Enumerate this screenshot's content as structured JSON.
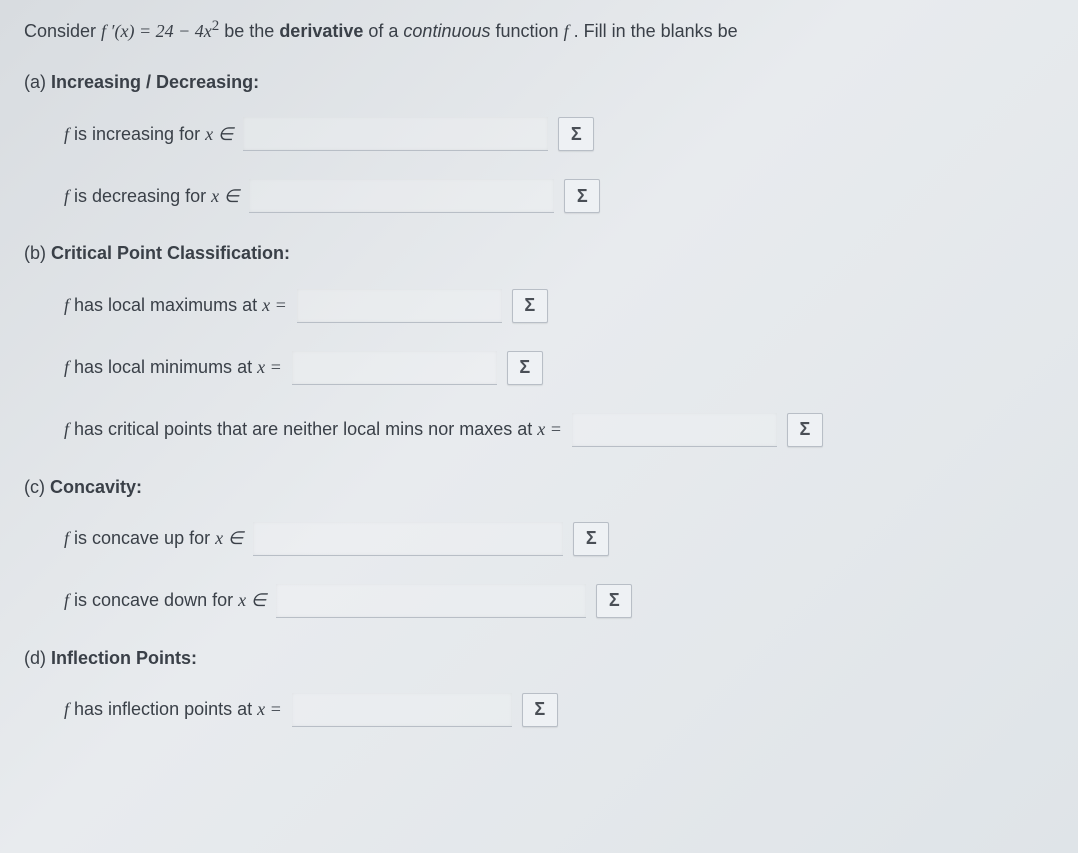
{
  "intro": {
    "prefix": "Consider ",
    "fprime": "f ′(x) = 24 − 4x",
    "exp": "2",
    "mid": " be the ",
    "bold1": "derivative",
    "mid2": " of a ",
    "ital1": "continuous",
    "mid3": " function ",
    "fsym": "f",
    "suffix": ". Fill in the blanks be"
  },
  "sections": {
    "a": {
      "label": "(a) ",
      "title": "Increasing / Decreasing:"
    },
    "b": {
      "label": "(b) ",
      "title": "Critical Point Classification:"
    },
    "c": {
      "label": "(c) ",
      "title": "Concavity:"
    },
    "d": {
      "label": "(d) ",
      "title": "Inflection Points:"
    }
  },
  "rows": {
    "inc": {
      "pre": "f",
      "text": " is increasing for ",
      "post": "x ∈",
      "input_width": 305
    },
    "dec": {
      "pre": "f",
      "text": " is decreasing for ",
      "post": "x ∈",
      "input_width": 305
    },
    "lmax": {
      "pre": "f",
      "text": " has local maximums at ",
      "post": "x =",
      "input_width": 205
    },
    "lmin": {
      "pre": "f",
      "text": " has local minimums at ",
      "post": "x =",
      "input_width": 205
    },
    "crit": {
      "pre": "f",
      "text": " has critical points that are neither local mins nor maxes at ",
      "post": "x =",
      "input_width": 205
    },
    "ccup": {
      "pre": "f",
      "text": " is concave up for ",
      "post": "x ∈",
      "input_width": 310
    },
    "ccdn": {
      "pre": "f",
      "text": " is concave down for ",
      "post": "x ∈",
      "input_width": 310
    },
    "infl": {
      "pre": "f",
      "text": " has inflection points at ",
      "post": "x =",
      "input_width": 220
    }
  },
  "sigma_label": "Σ"
}
